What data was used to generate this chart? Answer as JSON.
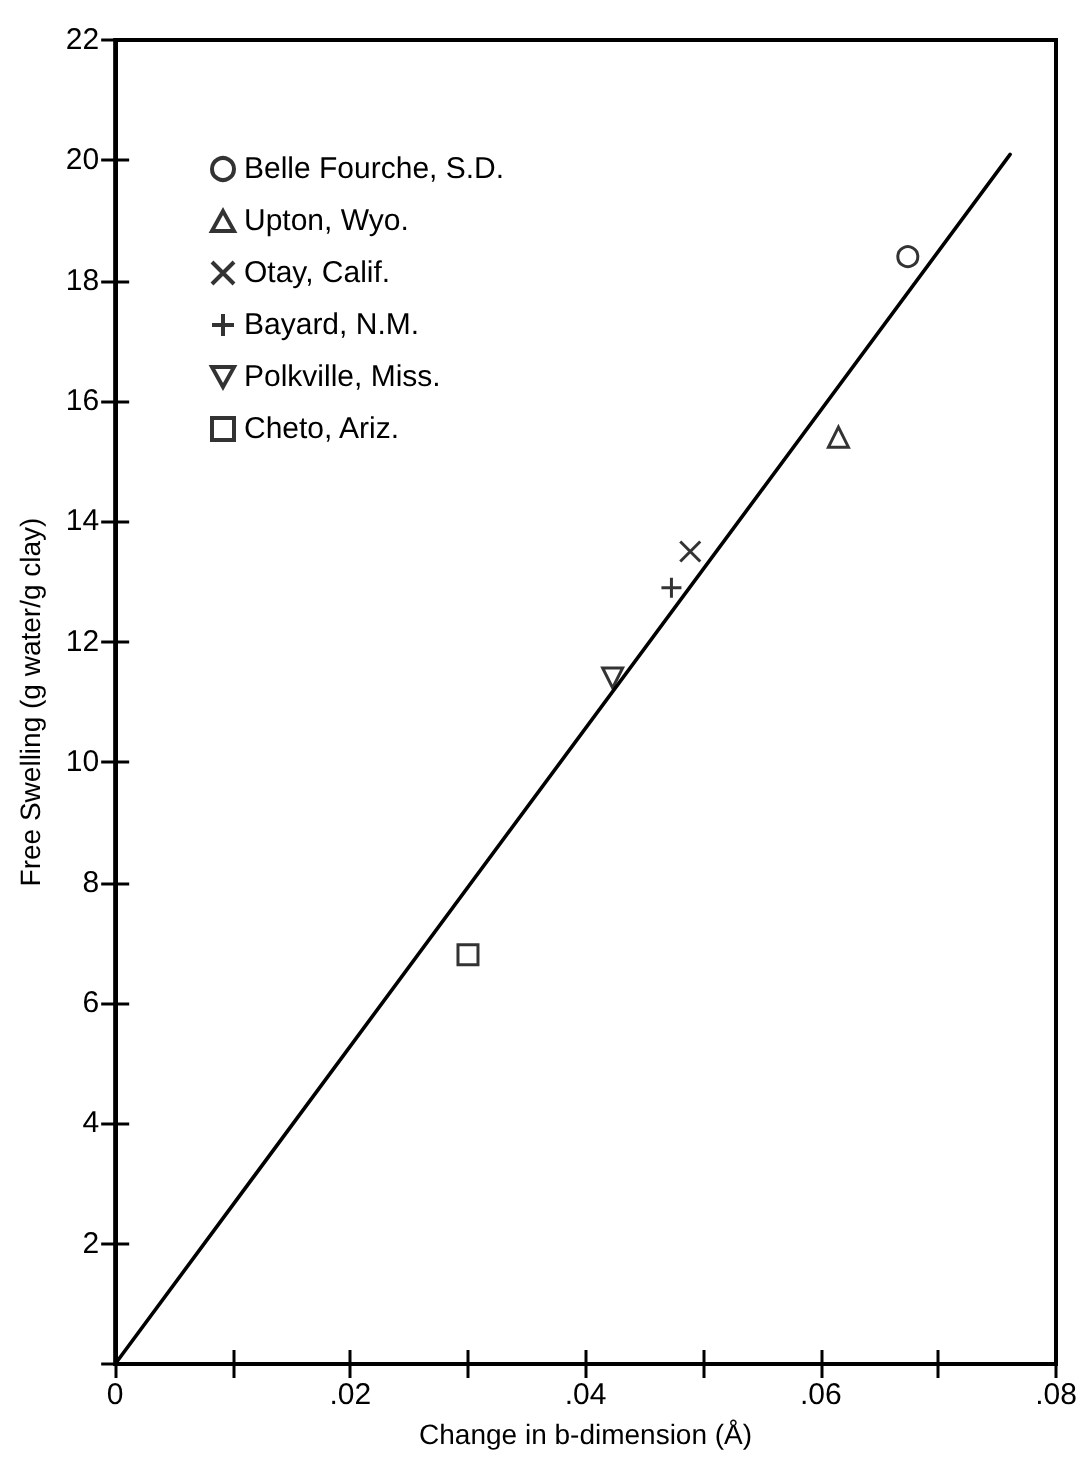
{
  "chart_data": {
    "type": "scatter",
    "xlabel": "Change in b-dimension (Å)",
    "ylabel": "Free Swelling (g water/g clay)",
    "xlim": [
      0,
      0.08
    ],
    "ylim": [
      0,
      22
    ],
    "xticks": [
      0,
      {
        "value": 0.01,
        "label": null
      },
      {
        "value": 0.02,
        "label": ".02"
      },
      {
        "value": 0.03,
        "label": null
      },
      {
        "value": 0.04,
        "label": ".04"
      },
      {
        "value": 0.05,
        "label": null
      },
      {
        "value": 0.06,
        "label": ".06"
      },
      {
        "value": 0.07,
        "label": null
      },
      {
        "value": 0.08,
        "label": ".08"
      }
    ],
    "yticks": [
      {
        "value": 0,
        "label": null
      },
      2,
      4,
      6,
      8,
      10,
      12,
      14,
      16,
      18,
      20,
      22
    ],
    "grid": false,
    "legend": "top left",
    "series": [
      {
        "name": "Belle Fourche, S.D.",
        "color": "#000000",
        "marker": "circle",
        "x": [
          0.0674
        ],
        "values": [
          18.4
        ]
      },
      {
        "name": "Upton, Wyo.",
        "color": "#000000",
        "marker": "triangle",
        "x": [
          0.0615
        ],
        "values": [
          15.4
        ]
      },
      {
        "name": "Otay, Calif.",
        "color": "#000000",
        "marker": "x",
        "x": [
          0.0489
        ],
        "values": [
          13.5
        ]
      },
      {
        "name": "Bayard, N.M.",
        "color": "#000000",
        "marker": "cross",
        "x": [
          0.0473
        ],
        "values": [
          12.9
        ]
      },
      {
        "name": "Polkville, Miss.",
        "color": "#000000",
        "marker": "triangle-down",
        "x": [
          0.0423
        ],
        "values": [
          11.4
        ]
      },
      {
        "name": "Cheto, Ariz.",
        "color": "#000000",
        "marker": "square",
        "x": [
          0.03
        ],
        "values": [
          6.8
        ]
      },
      {
        "type": "line",
        "color": "#000000",
        "marker": "none",
        "line_style": "solid",
        "x": [
          0,
          0.0761
        ],
        "values": [
          0,
          20.1
        ]
      }
    ]
  }
}
